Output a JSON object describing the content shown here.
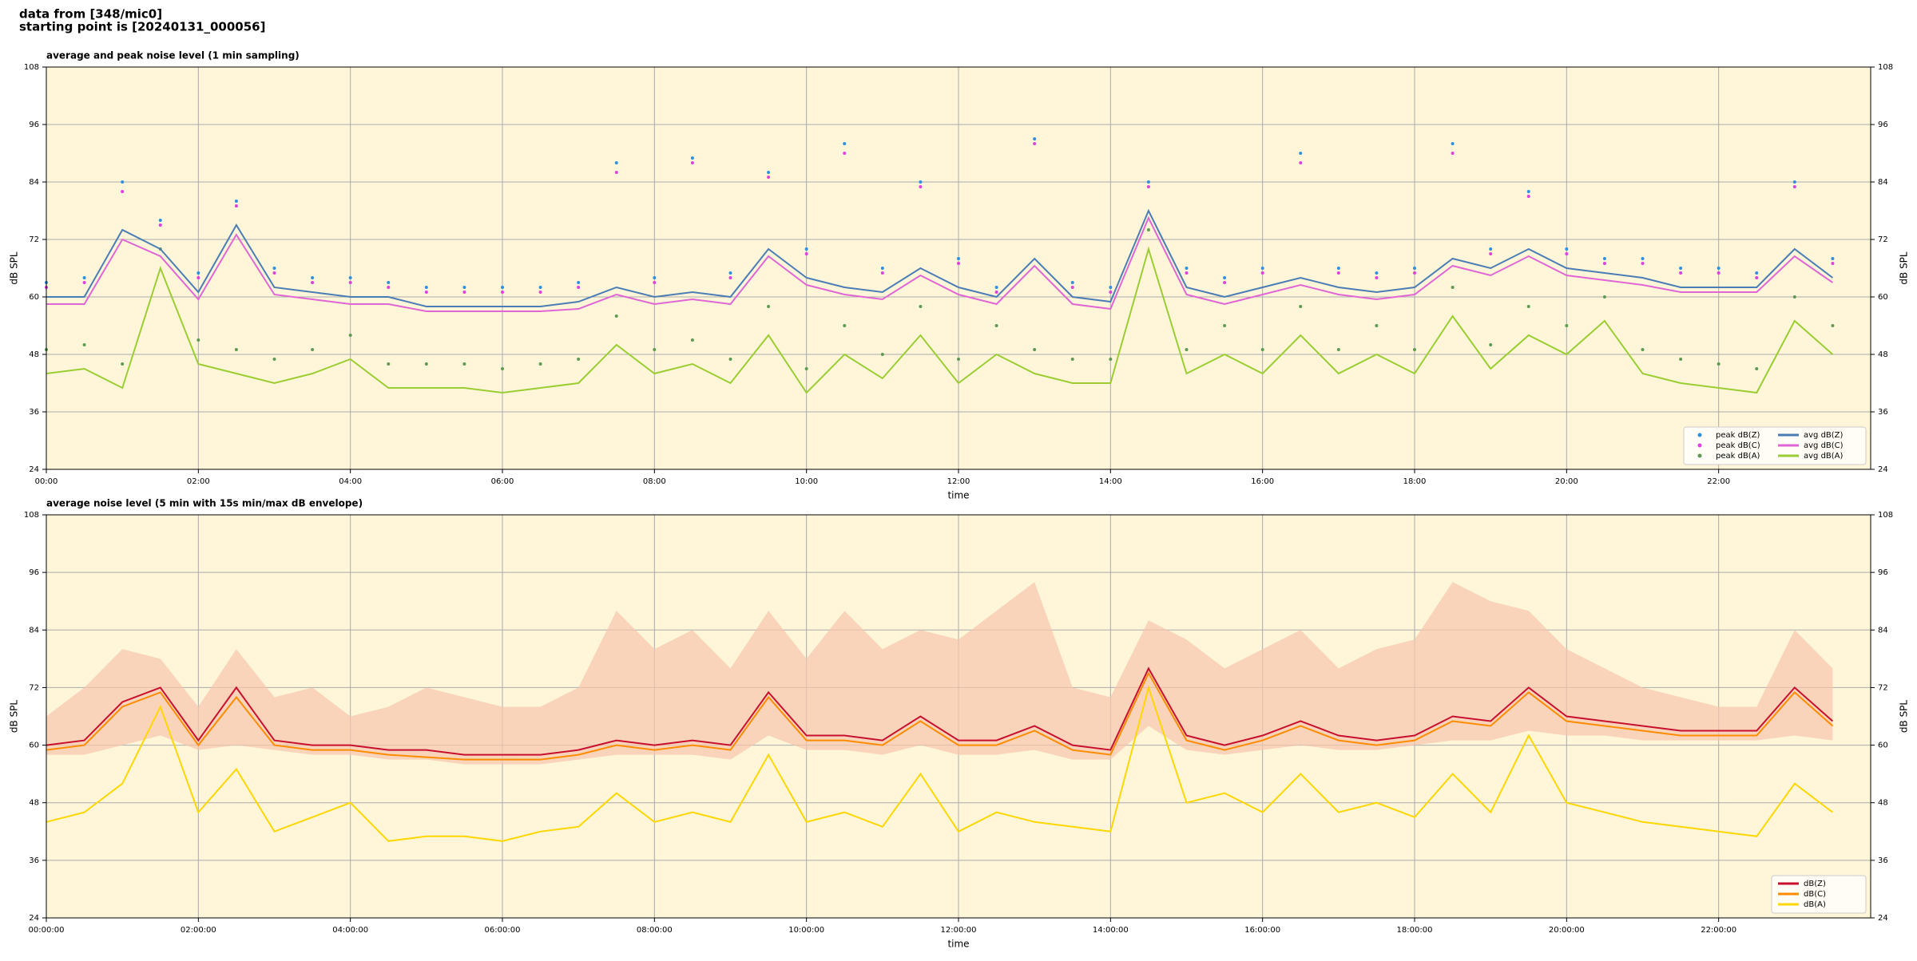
{
  "header": {
    "lines": [
      "data from [348/mic0]",
      "starting point is [20240131_000056]"
    ]
  },
  "chart_data": [
    {
      "type": "line",
      "title": "average and peak noise level (1 min sampling)",
      "xlabel": "time",
      "ylabel": "dB SPL",
      "background": "#fff6d9",
      "grid": true,
      "legend": "lower right",
      "legend_columns": 2,
      "xlim": [
        0,
        24
      ],
      "ylim": [
        24,
        108
      ],
      "yticks": [
        24,
        36,
        48,
        60,
        72,
        84,
        96,
        108
      ],
      "xticks": [
        {
          "value": 0,
          "label": "00:00"
        },
        {
          "value": 2,
          "label": "02:00"
        },
        {
          "value": 4,
          "label": "04:00"
        },
        {
          "value": 6,
          "label": "06:00"
        },
        {
          "value": 8,
          "label": "08:00"
        },
        {
          "value": 10,
          "label": "10:00"
        },
        {
          "value": 12,
          "label": "12:00"
        },
        {
          "value": 14,
          "label": "14:00"
        },
        {
          "value": 16,
          "label": "16:00"
        },
        {
          "value": 18,
          "label": "18:00"
        },
        {
          "value": 20,
          "label": "20:00"
        },
        {
          "value": 22,
          "label": "22:00"
        }
      ],
      "x": [
        0,
        0.5,
        1,
        1.5,
        2,
        2.5,
        3,
        3.5,
        4,
        4.5,
        5,
        5.5,
        6,
        6.5,
        7,
        7.5,
        8,
        8.5,
        9,
        9.5,
        10,
        10.5,
        11,
        11.5,
        12,
        12.5,
        13,
        13.5,
        14,
        14.5,
        15,
        15.5,
        16,
        16.5,
        17,
        17.5,
        18,
        18.5,
        19,
        19.5,
        20,
        20.5,
        21,
        21.5,
        22,
        22.5,
        23,
        23.5
      ],
      "series": [
        {
          "name": "peak dB(Z)",
          "type": "scatter",
          "color": "#2f8fe0",
          "values": [
            63,
            64,
            84,
            76,
            65,
            80,
            66,
            64,
            64,
            63,
            62,
            62,
            62,
            62,
            63,
            88,
            64,
            89,
            65,
            86,
            70,
            92,
            66,
            84,
            68,
            62,
            93,
            63,
            62,
            84,
            66,
            64,
            66,
            90,
            66,
            65,
            66,
            92,
            70,
            82,
            70,
            68,
            68,
            66,
            66,
            65,
            84,
            68
          ]
        },
        {
          "name": "peak dB(C)",
          "type": "scatter",
          "color": "#e040e0",
          "values": [
            62,
            63,
            82,
            75,
            64,
            79,
            65,
            63,
            63,
            62,
            61,
            61,
            61,
            61,
            62,
            86,
            63,
            88,
            64,
            85,
            69,
            90,
            65,
            83,
            67,
            61,
            92,
            62,
            61,
            83,
            65,
            63,
            65,
            88,
            65,
            64,
            65,
            90,
            69,
            81,
            69,
            67,
            67,
            65,
            65,
            64,
            83,
            67
          ]
        },
        {
          "name": "peak dB(A)",
          "type": "scatter",
          "color": "#5f9a55",
          "values": [
            49,
            50,
            46,
            70,
            51,
            49,
            47,
            49,
            52,
            46,
            46,
            46,
            45,
            46,
            47,
            56,
            49,
            51,
            47,
            58,
            45,
            54,
            48,
            58,
            47,
            54,
            49,
            47,
            47,
            74,
            49,
            54,
            49,
            58,
            49,
            54,
            49,
            62,
            50,
            58,
            54,
            60,
            49,
            47,
            46,
            45,
            60,
            54
          ]
        },
        {
          "name": "avg dB(Z)",
          "type": "line",
          "color": "#4a7db5",
          "values": [
            60,
            60,
            74,
            70,
            61,
            75,
            62,
            61,
            60,
            60,
            58,
            58,
            58,
            58,
            59,
            62,
            60,
            61,
            60,
            70,
            64,
            62,
            61,
            66,
            62,
            60,
            68,
            60,
            59,
            78,
            62,
            60,
            62,
            64,
            62,
            61,
            62,
            68,
            66,
            70,
            66,
            65,
            64,
            62,
            62,
            62,
            70,
            64
          ]
        },
        {
          "name": "avg dB(C)",
          "type": "line",
          "color": "#e066d6",
          "values": [
            58.5,
            58.5,
            72,
            68.5,
            59.5,
            73,
            60.5,
            59.5,
            58.5,
            58.5,
            57,
            57,
            57,
            57,
            57.5,
            60.5,
            58.5,
            59.5,
            58.5,
            68.5,
            62.5,
            60.5,
            59.5,
            64.5,
            60.5,
            58.5,
            66.5,
            58.5,
            57.5,
            76.5,
            60.5,
            58.5,
            60.5,
            62.5,
            60.5,
            59.5,
            60.5,
            66.5,
            64.5,
            68.5,
            64.5,
            63.5,
            62.5,
            61,
            61,
            61,
            68.5,
            63
          ]
        },
        {
          "name": "avg dB(A)",
          "type": "line",
          "color": "#9acd32",
          "values": [
            44,
            45,
            41,
            66,
            46,
            44,
            42,
            44,
            47,
            41,
            41,
            41,
            40,
            41,
            42,
            50,
            44,
            46,
            42,
            52,
            40,
            48,
            43,
            52,
            42,
            48,
            44,
            42,
            42,
            70,
            44,
            48,
            44,
            52,
            44,
            48,
            44,
            56,
            45,
            52,
            48,
            55,
            44,
            42,
            41,
            40,
            55,
            48
          ]
        }
      ]
    },
    {
      "type": "line",
      "title": "average noise level (5 min with 15s min/max dB envelope)",
      "xlabel": "time",
      "ylabel": "dB SPL",
      "background": "#fff6d9",
      "grid": true,
      "legend": "lower right",
      "legend_columns": 1,
      "xlim": [
        0,
        24
      ],
      "ylim": [
        24,
        108
      ],
      "yticks": [
        24,
        36,
        48,
        60,
        72,
        84,
        96,
        108
      ],
      "xticks": [
        {
          "value": 0,
          "label": "00:00:00"
        },
        {
          "value": 2,
          "label": "02:00:00"
        },
        {
          "value": 4,
          "label": "04:00:00"
        },
        {
          "value": 6,
          "label": "06:00:00"
        },
        {
          "value": 8,
          "label": "08:00:00"
        },
        {
          "value": 10,
          "label": "10:00:00"
        },
        {
          "value": 12,
          "label": "12:00:00"
        },
        {
          "value": 14,
          "label": "14:00:00"
        },
        {
          "value": 16,
          "label": "16:00:00"
        },
        {
          "value": 18,
          "label": "18:00:00"
        },
        {
          "value": 20,
          "label": "20:00:00"
        },
        {
          "value": 22,
          "label": "22:00:00"
        }
      ],
      "x": [
        0,
        0.5,
        1,
        1.5,
        2,
        2.5,
        3,
        3.5,
        4,
        4.5,
        5,
        5.5,
        6,
        6.5,
        7,
        7.5,
        8,
        8.5,
        9,
        9.5,
        10,
        10.5,
        11,
        11.5,
        12,
        12.5,
        13,
        13.5,
        14,
        14.5,
        15,
        15.5,
        16,
        16.5,
        17,
        17.5,
        18,
        18.5,
        19,
        19.5,
        20,
        20.5,
        21,
        21.5,
        22,
        22.5,
        23,
        23.5
      ],
      "band": {
        "color": "#f6c6ad",
        "lower": [
          58,
          58,
          60,
          62,
          59,
          60,
          59,
          58,
          58,
          57,
          57,
          56,
          56,
          56,
          57,
          58,
          58,
          58,
          57,
          62,
          59,
          59,
          58,
          60,
          58,
          58,
          59,
          57,
          57,
          64,
          59,
          58,
          59,
          60,
          59,
          59,
          60,
          61,
          61,
          63,
          62,
          62,
          61,
          61,
          61,
          61,
          62,
          61
        ],
        "upper": [
          66,
          72,
          80,
          78,
          68,
          80,
          70,
          72,
          66,
          68,
          72,
          70,
          68,
          68,
          72,
          88,
          80,
          84,
          76,
          88,
          78,
          88,
          80,
          84,
          82,
          88,
          94,
          72,
          70,
          86,
          82,
          76,
          80,
          84,
          76,
          80,
          82,
          94,
          90,
          88,
          80,
          76,
          72,
          70,
          68,
          68,
          84,
          76
        ]
      },
      "series": [
        {
          "name": "dB(Z)",
          "type": "line",
          "color": "#c8102e",
          "values": [
            60,
            61,
            69,
            72,
            61,
            72,
            61,
            60,
            60,
            59,
            59,
            58,
            58,
            58,
            59,
            61,
            60,
            61,
            60,
            71,
            62,
            62,
            61,
            66,
            61,
            61,
            64,
            60,
            59,
            76,
            62,
            60,
            62,
            65,
            62,
            61,
            62,
            66,
            65,
            72,
            66,
            65,
            64,
            63,
            63,
            63,
            72,
            65
          ]
        },
        {
          "name": "dB(C)",
          "type": "line",
          "color": "#ff8c00",
          "values": [
            59,
            60,
            68,
            71,
            60,
            70,
            60,
            59,
            59,
            58,
            57.5,
            57,
            57,
            57,
            58,
            60,
            59,
            60,
            59,
            70,
            61,
            61,
            60,
            65,
            60,
            60,
            63,
            59,
            58,
            75,
            61,
            59,
            61,
            64,
            61,
            60,
            61,
            65,
            64,
            71,
            65,
            64,
            63,
            62,
            62,
            62,
            71,
            64
          ]
        },
        {
          "name": "dB(A)",
          "type": "line",
          "color": "#ffd700",
          "values": [
            44,
            46,
            52,
            68,
            46,
            55,
            42,
            45,
            48,
            40,
            41,
            41,
            40,
            42,
            43,
            50,
            44,
            46,
            44,
            58,
            44,
            46,
            43,
            54,
            42,
            46,
            44,
            43,
            42,
            72,
            48,
            50,
            46,
            54,
            46,
            48,
            45,
            54,
            46,
            62,
            48,
            46,
            44,
            43,
            42,
            41,
            52,
            46
          ]
        }
      ]
    }
  ]
}
